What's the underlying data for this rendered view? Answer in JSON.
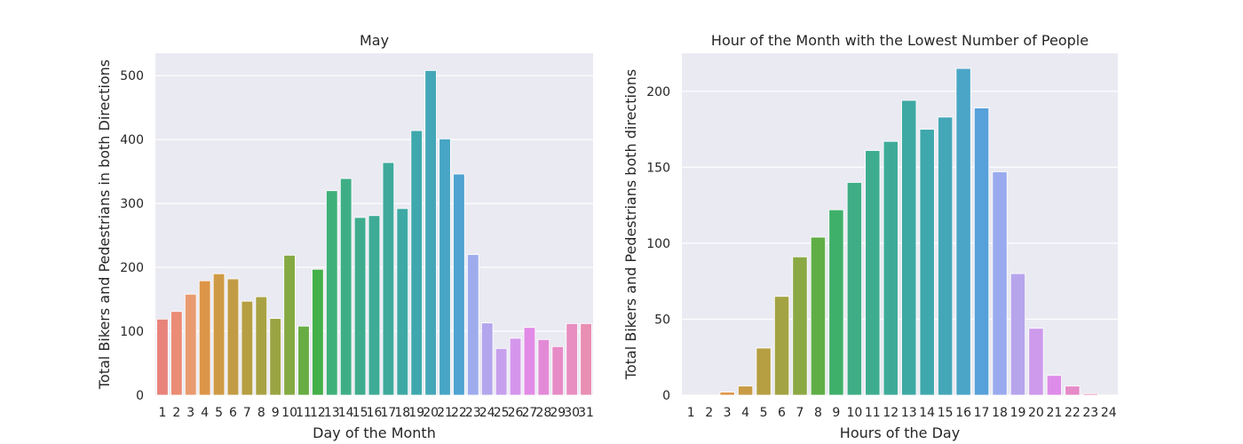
{
  "chart_data": [
    {
      "type": "bar",
      "title": "May",
      "xlabel": "Day of the Month",
      "ylabel": "Total Bikers and Pedestrians in both Directions",
      "ylim": [
        0,
        535
      ],
      "yticks": [
        0,
        100,
        200,
        300,
        400,
        500
      ],
      "grid": true,
      "categories": [
        "1",
        "2",
        "3",
        "4",
        "5",
        "6",
        "7",
        "8",
        "9",
        "10",
        "11",
        "12",
        "13",
        "14",
        "15",
        "16",
        "17",
        "18",
        "19",
        "20",
        "21",
        "22",
        "23",
        "24",
        "25",
        "26",
        "27",
        "28",
        "29",
        "30",
        "31"
      ],
      "values": [
        119,
        131,
        158,
        179,
        190,
        182,
        147,
        154,
        120,
        219,
        108,
        197,
        320,
        339,
        278,
        281,
        364,
        292,
        414,
        508,
        401,
        346,
        220,
        113,
        73,
        89,
        106,
        87,
        76,
        112,
        112
      ],
      "colors": [
        "#e8837b",
        "#ea8c76",
        "#e99b6f",
        "#dd9548",
        "#cf9a45",
        "#c29c44",
        "#b69f42",
        "#a9a243",
        "#9aa443",
        "#85a943",
        "#67ad44",
        "#43b049",
        "#3fb07a",
        "#3fae86",
        "#3fac8e",
        "#3eab96",
        "#3eaa9c",
        "#3ea9a4",
        "#3fa8ac",
        "#44a7b8",
        "#48a6c4",
        "#4ea3d1",
        "#9eacee",
        "#b4a6ed",
        "#c7a0ed",
        "#d496ec",
        "#e28ae7",
        "#e38ad6",
        "#e78bc6",
        "#e88ec1",
        "#e98fb4"
      ]
    },
    {
      "type": "bar",
      "title": "Hour of the Month with the Lowest Number of People",
      "xlabel": "Hours of the Day",
      "ylabel": "Total Bikers and Pedestrians both directions",
      "ylim": [
        0,
        225
      ],
      "yticks": [
        0,
        50,
        100,
        150,
        200
      ],
      "grid": true,
      "categories": [
        "1",
        "2",
        "3",
        "4",
        "5",
        "6",
        "7",
        "8",
        "9",
        "10",
        "11",
        "12",
        "13",
        "14",
        "15",
        "16",
        "17",
        "18",
        "19",
        "20",
        "21",
        "22",
        "23",
        "24"
      ],
      "values": [
        0,
        0,
        2,
        6,
        31,
        65,
        91,
        104,
        122,
        140,
        161,
        167,
        194,
        175,
        183,
        215,
        189,
        147,
        80,
        44,
        13,
        6,
        1,
        0
      ],
      "colors": [
        "#ec8678",
        "#e4916a",
        "#dd9548",
        "#c89b45",
        "#b69f42",
        "#a3a343",
        "#8aa843",
        "#5fae45",
        "#3fb06a",
        "#3fae86",
        "#3eac8f",
        "#3eab99",
        "#3ea9a3",
        "#3fa8ac",
        "#44a7b8",
        "#4aa5c7",
        "#56a1d9",
        "#9aaaee",
        "#b7a5ec",
        "#cd9aec",
        "#de8ce9",
        "#e68ac8",
        "#e88dbc",
        "#e990b3"
      ]
    }
  ]
}
